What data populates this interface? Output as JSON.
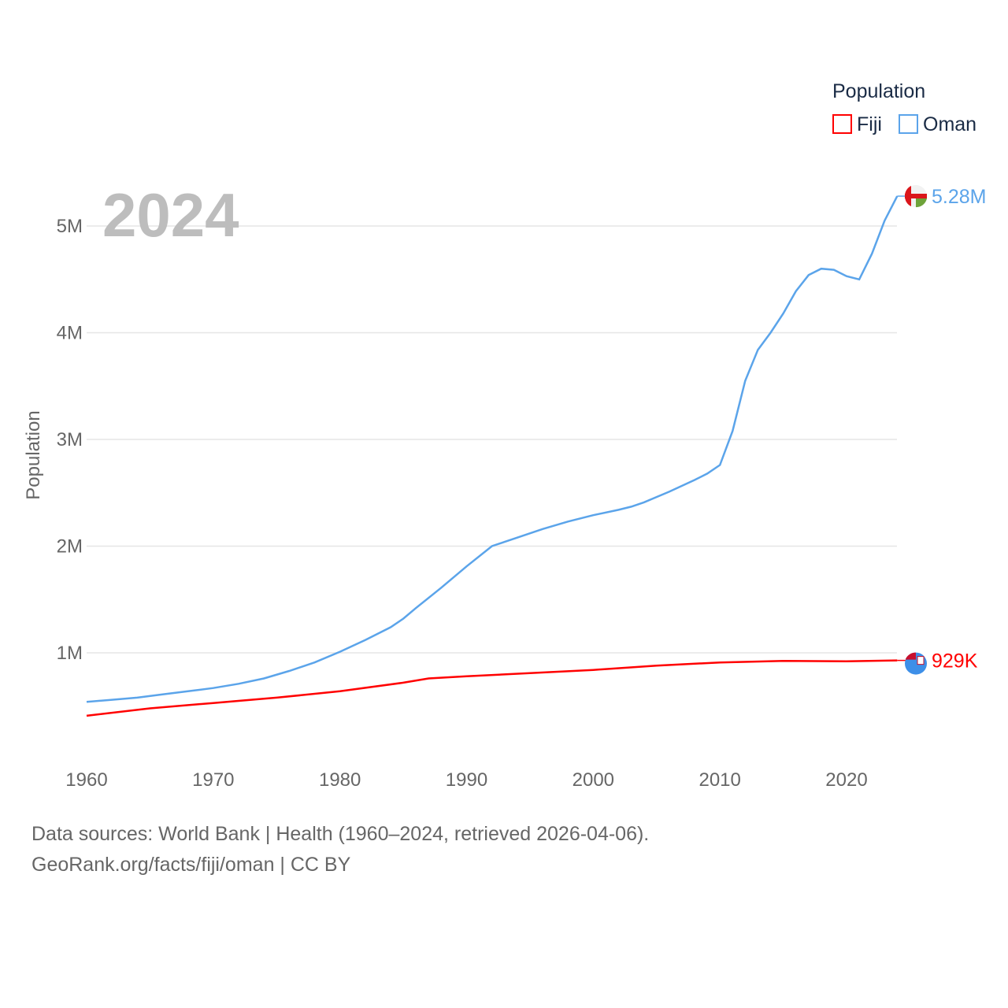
{
  "chart_data": {
    "type": "line",
    "year_label": "2024",
    "ylabel": "Population",
    "legend_title": "Population",
    "legend_position": "top-right",
    "xlim": [
      1960,
      2024
    ],
    "ylim": [
      0,
      5500000
    ],
    "x_ticks": [
      {
        "value": 1960,
        "label": "1960"
      },
      {
        "value": 1970,
        "label": "1970"
      },
      {
        "value": 1980,
        "label": "1980"
      },
      {
        "value": 1990,
        "label": "1990"
      },
      {
        "value": 2000,
        "label": "2000"
      },
      {
        "value": 2010,
        "label": "2010"
      },
      {
        "value": 2020,
        "label": "2020"
      }
    ],
    "y_ticks": [
      {
        "value": 1000000,
        "label": "1M"
      },
      {
        "value": 2000000,
        "label": "2M"
      },
      {
        "value": 3000000,
        "label": "3M"
      },
      {
        "value": 4000000,
        "label": "4M"
      },
      {
        "value": 5000000,
        "label": "5M"
      }
    ],
    "grid": true,
    "series": [
      {
        "name": "Fiji",
        "color": "#ff0000",
        "end_label": "929K",
        "points": [
          [
            1960,
            410000
          ],
          [
            1965,
            480000
          ],
          [
            1970,
            530000
          ],
          [
            1975,
            580000
          ],
          [
            1980,
            640000
          ],
          [
            1985,
            720000
          ],
          [
            1987,
            760000
          ],
          [
            1990,
            780000
          ],
          [
            1995,
            810000
          ],
          [
            2000,
            840000
          ],
          [
            2005,
            880000
          ],
          [
            2010,
            910000
          ],
          [
            2015,
            925000
          ],
          [
            2020,
            920000
          ],
          [
            2024,
            929000
          ]
        ]
      },
      {
        "name": "Oman",
        "color": "#5ba4ea",
        "end_label": "5.28M",
        "points": [
          [
            1960,
            540000
          ],
          [
            1962,
            560000
          ],
          [
            1964,
            580000
          ],
          [
            1966,
            610000
          ],
          [
            1968,
            640000
          ],
          [
            1970,
            670000
          ],
          [
            1972,
            710000
          ],
          [
            1974,
            760000
          ],
          [
            1976,
            830000
          ],
          [
            1978,
            910000
          ],
          [
            1980,
            1010000
          ],
          [
            1982,
            1120000
          ],
          [
            1984,
            1240000
          ],
          [
            1985,
            1320000
          ],
          [
            1986,
            1420000
          ],
          [
            1988,
            1610000
          ],
          [
            1990,
            1810000
          ],
          [
            1992,
            2000000
          ],
          [
            1993,
            2040000
          ],
          [
            1994,
            2080000
          ],
          [
            1996,
            2160000
          ],
          [
            1998,
            2230000
          ],
          [
            2000,
            2290000
          ],
          [
            2002,
            2340000
          ],
          [
            2003,
            2370000
          ],
          [
            2004,
            2410000
          ],
          [
            2006,
            2510000
          ],
          [
            2008,
            2620000
          ],
          [
            2009,
            2680000
          ],
          [
            2010,
            2760000
          ],
          [
            2011,
            3080000
          ],
          [
            2012,
            3550000
          ],
          [
            2013,
            3840000
          ],
          [
            2014,
            4000000
          ],
          [
            2015,
            4180000
          ],
          [
            2016,
            4390000
          ],
          [
            2017,
            4540000
          ],
          [
            2018,
            4600000
          ],
          [
            2019,
            4590000
          ],
          [
            2020,
            4530000
          ],
          [
            2021,
            4500000
          ],
          [
            2022,
            4740000
          ],
          [
            2023,
            5050000
          ],
          [
            2024,
            5280000
          ]
        ]
      }
    ]
  },
  "footer": {
    "line1": "Data sources: World Bank | Health (1960–2024, retrieved 2026-04-06).",
    "line2": "GeoRank.org/facts/fiji/oman | CC BY"
  }
}
